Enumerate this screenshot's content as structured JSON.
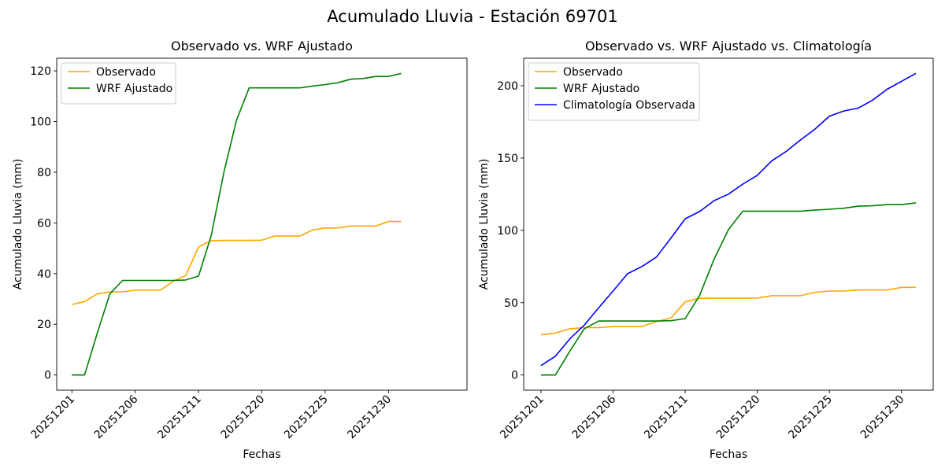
{
  "suptitle": "Acumulado Lluvia - Estación 69701",
  "colors": {
    "observado": "#ffa500",
    "wrf": "#008000",
    "clima": "#0000ff"
  },
  "chart_data": [
    {
      "type": "line",
      "title": "Observado vs. WRF Ajustado",
      "xlabel": "Fechas",
      "ylabel": "Acumulado Lluvia (mm)",
      "x": [
        1,
        2,
        3,
        4,
        5,
        6,
        7,
        8,
        9,
        10,
        11,
        12,
        13,
        14,
        15,
        16,
        17,
        18,
        19,
        20,
        21,
        22,
        23,
        24,
        25,
        26,
        27,
        28,
        29,
        30,
        31
      ],
      "xticks": [
        1,
        6,
        11,
        16,
        21,
        26
      ],
      "xtick_labels": [
        "20251201",
        "20251206",
        "20251211",
        "20251220",
        "20251225",
        "20251230"
      ],
      "xlim": [
        -0.2,
        32.2
      ],
      "ylim": [
        -6,
        125
      ],
      "yticks": [
        0,
        20,
        40,
        60,
        80,
        100,
        120
      ],
      "ytick_labels": [
        "0",
        "20",
        "40",
        "60",
        "80",
        "100",
        "120"
      ],
      "legend": "top-left",
      "series": [
        {
          "name": "Observado",
          "color_key": "observado",
          "values": [
            27.8,
            29,
            32,
            32.8,
            32.8,
            33.5,
            33.5,
            33.5,
            37,
            39.3,
            50.5,
            53,
            53.1,
            53.1,
            53.1,
            53.2,
            54.8,
            54.8,
            54.8,
            57.2,
            58,
            58,
            58.8,
            58.8,
            58.8,
            60.6,
            60.6
          ],
          "x": [
            1,
            2,
            3,
            4,
            5,
            6,
            7,
            8,
            9,
            10,
            11,
            12,
            13,
            14,
            15,
            16,
            17,
            18,
            19,
            20,
            21,
            22,
            23,
            24,
            25,
            26,
            27
          ]
        },
        {
          "name": "WRF Ajustado",
          "color_key": "wrf",
          "values": [
            0,
            0,
            16.5,
            32,
            37.3,
            37.3,
            37.3,
            37.3,
            37.3,
            37.5,
            39,
            55,
            80,
            100.5,
            113.3,
            113.3,
            113.3,
            113.3,
            113.3,
            114,
            114.6,
            115.3,
            116.7,
            117,
            117.8,
            117.8,
            119
          ],
          "x": [
            1,
            2,
            3,
            4,
            5,
            6,
            7,
            8,
            9,
            10,
            11,
            12,
            13,
            14,
            15,
            16,
            17,
            18,
            19,
            20,
            21,
            22,
            23,
            24,
            25,
            26,
            27
          ]
        }
      ]
    },
    {
      "type": "line",
      "title": "Observado vs. WRF Ajustado vs. Climatología",
      "xlabel": "Fechas",
      "ylabel": "Acumulado Lluvia (mm)",
      "xticks": [
        1,
        6,
        11,
        16,
        21,
        26
      ],
      "xtick_labels": [
        "20251201",
        "20251206",
        "20251211",
        "20251220",
        "20251225",
        "20251230"
      ],
      "xlim": [
        -0.2,
        28.2
      ],
      "ylim": [
        -10.5,
        219
      ],
      "yticks": [
        0,
        50,
        100,
        150,
        200
      ],
      "ytick_labels": [
        "0",
        "50",
        "100",
        "150",
        "200"
      ],
      "legend": "top-left",
      "series": [
        {
          "name": "Observado",
          "color_key": "observado",
          "x": [
            1,
            2,
            3,
            4,
            5,
            6,
            7,
            8,
            9,
            10,
            11,
            12,
            13,
            14,
            15,
            16,
            17,
            18,
            19,
            20,
            21,
            22,
            23,
            24,
            25,
            26,
            27
          ],
          "values": [
            27.8,
            29,
            32,
            32.8,
            32.8,
            33.5,
            33.5,
            33.5,
            37,
            39.3,
            50.5,
            53,
            53.1,
            53.1,
            53.1,
            53.2,
            54.8,
            54.8,
            54.8,
            57.2,
            58,
            58,
            58.8,
            58.8,
            58.8,
            60.6,
            60.6
          ]
        },
        {
          "name": "WRF Ajustado",
          "color_key": "wrf",
          "x": [
            1,
            2,
            3,
            4,
            5,
            6,
            7,
            8,
            9,
            10,
            11,
            12,
            13,
            14,
            15,
            16,
            17,
            18,
            19,
            20,
            21,
            22,
            23,
            24,
            25,
            26,
            27
          ],
          "values": [
            0,
            0,
            16.5,
            32,
            37.3,
            37.3,
            37.3,
            37.3,
            37.3,
            37.5,
            39,
            55,
            80,
            100.5,
            113.3,
            113.3,
            113.3,
            113.3,
            113.3,
            114,
            114.6,
            115.3,
            116.7,
            117,
            117.8,
            117.8,
            119
          ]
        },
        {
          "name": "Climatología Observada",
          "color_key": "clima",
          "x": [
            1,
            2,
            3,
            4,
            5,
            6,
            7,
            8,
            9,
            10,
            11,
            12,
            13,
            14,
            15,
            16,
            17,
            18,
            19,
            20,
            21,
            22,
            23,
            24,
            25,
            26,
            27
          ],
          "values": [
            6.5,
            13,
            25,
            34.5,
            46.5,
            58,
            70,
            75,
            81.5,
            94.5,
            108,
            113,
            120.5,
            125,
            132,
            138,
            148,
            154.5,
            162.5,
            170,
            179,
            182.5,
            184.5,
            190,
            197.5,
            203,
            208.5
          ]
        }
      ]
    }
  ]
}
